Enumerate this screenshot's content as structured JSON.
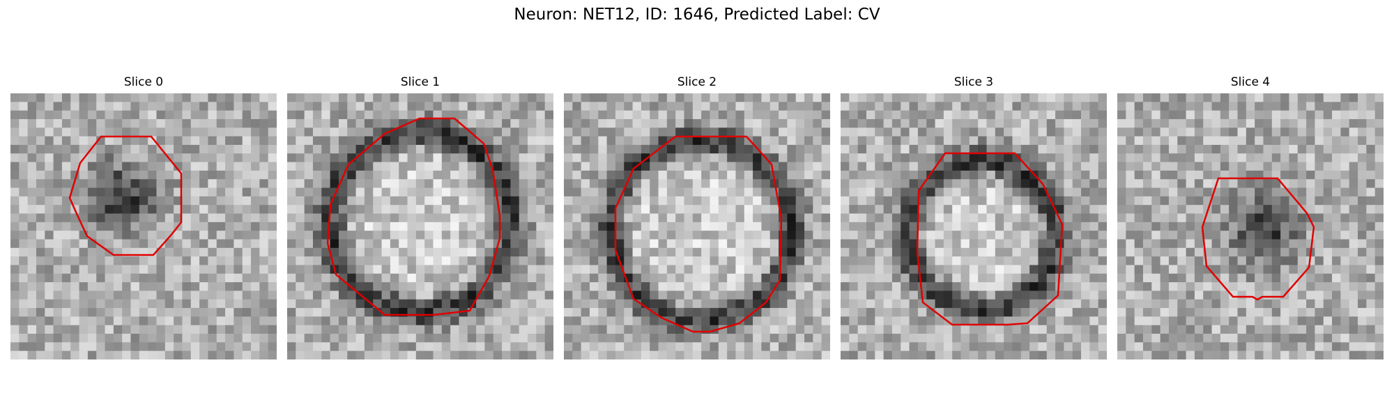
{
  "figure": {
    "title": "Neuron: NET12, ID: 1646, Predicted Label: CV"
  },
  "outline_color": "#e00000",
  "panels": [
    {
      "title": "Slice 0",
      "ring": "dark-blob",
      "label_color": "#e00000"
    },
    {
      "title": "Slice 1",
      "ring": "dark-ring"
    },
    {
      "title": "Slice 2",
      "ring": "dark-ring"
    },
    {
      "title": "Slice 3",
      "ring": "dark-ring"
    },
    {
      "title": "Slice 4",
      "ring": "dark-blob"
    }
  ]
}
